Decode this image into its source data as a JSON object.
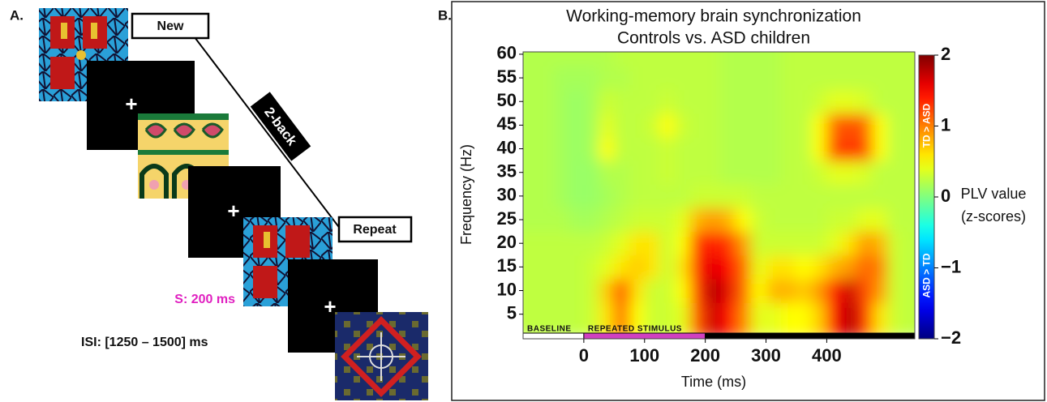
{
  "panel_a": {
    "label": "A.",
    "new_label": "New",
    "repeat_label": "Repeat",
    "lag_label": "2-back",
    "fixation": "+",
    "stimulus_duration": "S: 200 ms",
    "isi": "ISI: [1250 – 1500] ms"
  },
  "chart_data": {
    "type": "heatmap",
    "panel_label": "B.",
    "title": "Working-memory brain synchronization",
    "subtitle": "Controls vs. ASD children",
    "xlabel": "Time (ms)",
    "ylabel": "Frequency (Hz)",
    "xlim": [
      -100,
      545
    ],
    "ylim": [
      1,
      60.5
    ],
    "xticks": [
      0,
      100,
      200,
      300,
      400
    ],
    "yticks": [
      5,
      10,
      15,
      20,
      25,
      30,
      35,
      40,
      45,
      50,
      55,
      60
    ],
    "x": [
      -87.5,
      -62.5,
      -37.5,
      -12.5,
      12.5,
      37.5,
      62.5,
      87.5,
      112.5,
      137.5,
      162.5,
      187.5,
      212.5,
      237.5,
      262.5,
      287.5,
      312.5,
      337.5,
      362.5,
      387.5,
      412.5,
      437.5,
      462.5,
      487.5,
      512.5,
      537.5
    ],
    "y": [
      5,
      10,
      15,
      20,
      25,
      30,
      35,
      40,
      45,
      50,
      55,
      60
    ],
    "z": [
      [
        0.25,
        0.25,
        0.25,
        0.25,
        0.3,
        0.6,
        1.1,
        0.5,
        0.3,
        0.3,
        0.4,
        1.2,
        1.7,
        1.5,
        1.0,
        0.4,
        0.4,
        0.5,
        0.5,
        0.7,
        1.5,
        1.8,
        1.3,
        0.6,
        0.3,
        0.25
      ],
      [
        0.25,
        0.25,
        0.25,
        0.25,
        0.3,
        0.7,
        1.2,
        0.6,
        0.3,
        0.3,
        0.5,
        1.3,
        1.8,
        1.6,
        1.1,
        0.5,
        0.8,
        0.8,
        0.7,
        0.9,
        1.4,
        1.7,
        1.2,
        0.9,
        0.3,
        0.25
      ],
      [
        0.25,
        0.25,
        0.25,
        0.25,
        0.3,
        0.4,
        0.6,
        0.7,
        0.6,
        0.3,
        0.6,
        1.4,
        1.6,
        1.5,
        1.1,
        0.4,
        0.6,
        0.6,
        0.5,
        0.6,
        0.8,
        0.9,
        1.1,
        1.0,
        0.3,
        0.25
      ],
      [
        0.25,
        0.25,
        0.25,
        0.25,
        0.25,
        0.3,
        0.4,
        0.6,
        0.6,
        0.3,
        0.5,
        1.3,
        1.4,
        1.3,
        0.9,
        0.3,
        0.3,
        0.3,
        0.3,
        0.3,
        0.4,
        0.6,
        0.9,
        0.8,
        0.3,
        0.25
      ],
      [
        0.2,
        0.2,
        0.2,
        0.15,
        0.15,
        0.2,
        0.25,
        0.3,
        0.3,
        0.3,
        0.4,
        0.8,
        0.9,
        0.8,
        0.5,
        0.3,
        0.25,
        0.25,
        0.25,
        0.25,
        0.3,
        0.3,
        0.4,
        0.4,
        0.25,
        0.25
      ],
      [
        0.2,
        0.2,
        0.15,
        0.1,
        0.1,
        0.15,
        0.2,
        0.25,
        0.25,
        0.25,
        0.25,
        0.3,
        0.3,
        0.3,
        0.3,
        0.25,
        0.25,
        0.25,
        0.25,
        0.25,
        0.25,
        0.25,
        0.25,
        0.25,
        0.25,
        0.25
      ],
      [
        0.2,
        0.2,
        0.15,
        0.1,
        0.1,
        0.2,
        0.2,
        0.25,
        0.25,
        0.3,
        0.25,
        0.25,
        0.25,
        0.2,
        0.2,
        0.2,
        0.2,
        0.25,
        0.25,
        0.3,
        0.4,
        0.4,
        0.35,
        0.25,
        0.25,
        0.25
      ],
      [
        0.2,
        0.2,
        0.15,
        0.1,
        0.15,
        0.5,
        0.25,
        0.25,
        0.25,
        0.3,
        0.25,
        0.25,
        0.25,
        0.2,
        0.2,
        0.2,
        0.2,
        0.25,
        0.25,
        0.5,
        1.2,
        1.3,
        1.2,
        0.5,
        0.25,
        0.25
      ],
      [
        0.2,
        0.2,
        0.15,
        0.1,
        0.15,
        0.4,
        0.25,
        0.25,
        0.3,
        0.5,
        0.3,
        0.25,
        0.25,
        0.2,
        0.2,
        0.2,
        0.2,
        0.25,
        0.25,
        0.5,
        1.1,
        1.2,
        1.1,
        0.5,
        0.25,
        0.25
      ],
      [
        0.2,
        0.2,
        0.15,
        0.1,
        0.15,
        0.3,
        0.25,
        0.25,
        0.25,
        0.3,
        0.25,
        0.25,
        0.25,
        0.2,
        0.2,
        0.2,
        0.2,
        0.25,
        0.25,
        0.3,
        0.4,
        0.4,
        0.35,
        0.25,
        0.25,
        0.25
      ],
      [
        0.2,
        0.2,
        0.15,
        0.15,
        0.15,
        0.2,
        0.2,
        0.25,
        0.25,
        0.25,
        0.25,
        0.25,
        0.25,
        0.2,
        0.2,
        0.2,
        0.2,
        0.25,
        0.25,
        0.25,
        0.25,
        0.25,
        0.25,
        0.25,
        0.25,
        0.25
      ],
      [
        0.2,
        0.2,
        0.2,
        0.2,
        0.2,
        0.2,
        0.25,
        0.25,
        0.25,
        0.25,
        0.25,
        0.25,
        0.25,
        0.2,
        0.2,
        0.2,
        0.2,
        0.25,
        0.25,
        0.25,
        0.25,
        0.25,
        0.25,
        0.25,
        0.25,
        0.25
      ]
    ],
    "colormap": "jet",
    "clim": [
      -2,
      2
    ],
    "colorbar_ticks": [
      {
        "value": -2,
        "label": "−2"
      },
      {
        "value": -1,
        "label": "−1"
      },
      0,
      1,
      2
    ],
    "colorbar_label": "PLV value",
    "colorbar_unit": "(z-scores)",
    "colorbar_high_label": "TD > ASD",
    "colorbar_low_label": "ASD > TD",
    "periods": [
      {
        "label": "BASELINE",
        "start": -100,
        "end": 0,
        "color": "#ffffff"
      },
      {
        "label": "REPEATED STIMULUS",
        "start": 0,
        "end": 200,
        "color": "#d040c0"
      },
      {
        "start": 200,
        "end": 545,
        "color": "#000000"
      }
    ]
  }
}
